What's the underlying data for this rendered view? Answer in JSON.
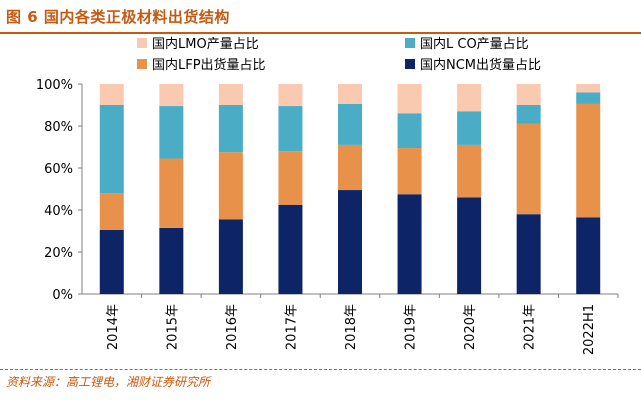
{
  "figure_title": "图 6 国内各类正极材料出货结构",
  "source_note": "资料来源：高工锂电，湘财证券研究所",
  "colors": {
    "NCM": "#0d2566",
    "LFP": "#e8914a",
    "LCO": "#4bacc6",
    "LMO": "#f9c9b0",
    "accent": "#c55a11"
  },
  "chart_data": {
    "type": "bar",
    "stacked": true,
    "title": "图 6 国内各类正极材料出货结构",
    "xlabel": "",
    "ylabel": "",
    "ylim": [
      0,
      100
    ],
    "yticks": [
      0,
      20,
      40,
      60,
      80,
      100
    ],
    "ytick_labels": [
      "0%",
      "20%",
      "40%",
      "60%",
      "80%",
      "100%"
    ],
    "categories": [
      "2014年",
      "2015年",
      "2016年",
      "2017年",
      "2018年",
      "2019年",
      "2020年",
      "2021年",
      "2022H1"
    ],
    "legend_position": "top",
    "series": [
      {
        "key": "NCM",
        "name": "国内NCM出货量占比",
        "values": [
          30.5,
          31.5,
          35.5,
          42.5,
          49.5,
          47.5,
          46,
          38,
          36.5
        ]
      },
      {
        "key": "LFP",
        "name": "国内LFP出货量占比",
        "values": [
          17.5,
          33,
          32,
          25.5,
          21.5,
          22,
          25,
          43,
          54
        ]
      },
      {
        "key": "LCO",
        "name": "国内L CO产量占比",
        "values": [
          42,
          25,
          22.5,
          21.5,
          19.5,
          16.5,
          16,
          9,
          5.5
        ]
      },
      {
        "key": "LMO",
        "name": "国内LMO产量占比",
        "values": [
          10,
          10.5,
          10,
          10.5,
          9.5,
          14,
          13,
          10,
          4
        ]
      }
    ]
  }
}
